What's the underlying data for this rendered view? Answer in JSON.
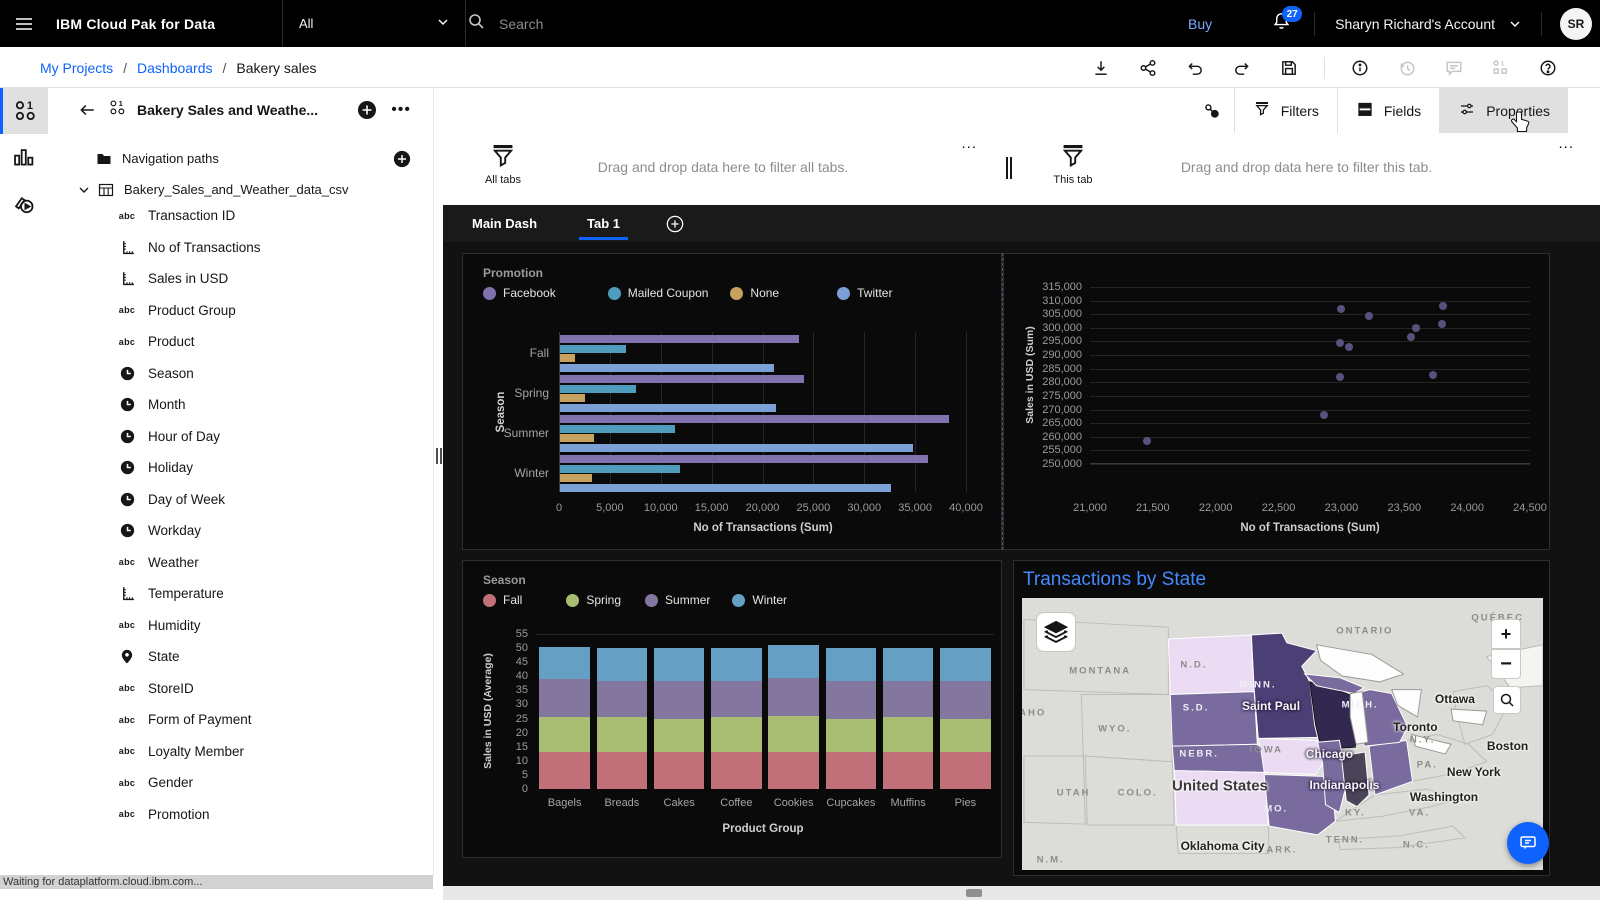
{
  "header": {
    "product": "IBM Cloud Pak for Data",
    "scope_selector": "All",
    "search_placeholder": "Search",
    "buy_label": "Buy",
    "notification_count": "27",
    "account_label": "Sharyn Richard's Account",
    "avatar_initials": "SR"
  },
  "breadcrumb": {
    "separator": "/",
    "items": [
      {
        "label": "My Projects",
        "link": true
      },
      {
        "label": "Dashboards",
        "link": true
      },
      {
        "label": "Bakery sales",
        "link": false
      }
    ]
  },
  "action_toolbar": {
    "icons": [
      {
        "name": "download-icon",
        "disabled": false
      },
      {
        "name": "share-icon",
        "disabled": false
      },
      {
        "name": "undo-icon",
        "disabled": false
      },
      {
        "name": "redo-icon",
        "disabled": false
      },
      {
        "name": "save-icon",
        "disabled": false
      },
      {
        "name": "info-icon",
        "disabled": false,
        "divider_before": true
      },
      {
        "name": "history-icon",
        "disabled": true
      },
      {
        "name": "comment-icon",
        "disabled": true
      },
      {
        "name": "data-icon",
        "disabled": true
      },
      {
        "name": "help-icon",
        "disabled": false
      }
    ]
  },
  "rail": {
    "items": [
      {
        "name": "data-sources",
        "icon": "rail-data-icon",
        "active": true
      },
      {
        "name": "visualizations",
        "icon": "rail-chart-icon",
        "active": false
      },
      {
        "name": "media",
        "icon": "rail-media-icon",
        "active": false
      }
    ]
  },
  "data_panel": {
    "title": "Bakery Sales and Weathe...",
    "navigation_folder": "Navigation paths",
    "table_name": "Bakery_Sales_and_Weather_data_csv",
    "fields": [
      {
        "label": "Transaction ID",
        "type": "text"
      },
      {
        "label": "No of Transactions",
        "type": "measure"
      },
      {
        "label": "Sales in USD",
        "type": "measure"
      },
      {
        "label": "Product Group",
        "type": "text"
      },
      {
        "label": "Product",
        "type": "text"
      },
      {
        "label": "Season",
        "type": "time"
      },
      {
        "label": "Month",
        "type": "time"
      },
      {
        "label": "Hour of Day",
        "type": "time"
      },
      {
        "label": "Holiday",
        "type": "time"
      },
      {
        "label": "Day of Week",
        "type": "time"
      },
      {
        "label": "Workday",
        "type": "time"
      },
      {
        "label": "Weather",
        "type": "text"
      },
      {
        "label": "Temperature",
        "type": "measure"
      },
      {
        "label": "Humidity",
        "type": "text"
      },
      {
        "label": "State",
        "type": "location"
      },
      {
        "label": "StoreID",
        "type": "text"
      },
      {
        "label": "Form of Payment",
        "type": "text"
      },
      {
        "label": "Loyalty Member",
        "type": "text"
      },
      {
        "label": "Gender",
        "type": "text"
      },
      {
        "label": "Promotion",
        "type": "text"
      }
    ]
  },
  "canvas_toolbar": {
    "buttons": [
      {
        "label": "Filters",
        "icon": "funnel-icon",
        "active": false
      },
      {
        "label": "Fields",
        "icon": "fields-icon",
        "active": false
      },
      {
        "label": "Properties",
        "icon": "sliders-icon",
        "active": true
      }
    ]
  },
  "filter_zones": {
    "all_tabs": {
      "label": "All tabs",
      "hint": "Drag and drop data here to filter all tabs.",
      "menu": "..."
    },
    "this_tab": {
      "label": "This tab",
      "hint": "Drag and drop data here to filter this tab.",
      "menu": "..."
    }
  },
  "tabs": {
    "items": [
      {
        "label": "Main Dash",
        "active": false
      },
      {
        "label": "Tab 1",
        "active": true
      }
    ]
  },
  "status_bar": "Waiting for dataplatform.cloud.ibm.com...",
  "chart_data": [
    {
      "type": "bar",
      "orientation": "horizontal",
      "legend_title": "Promotion",
      "categories": [
        "Fall",
        "Spring",
        "Summer",
        "Winter"
      ],
      "series": [
        {
          "name": "Facebook",
          "color": "#8172ae",
          "values": [
            23500,
            24000,
            38200,
            36200
          ]
        },
        {
          "name": "Mailed Coupon",
          "color": "#4f9dbd",
          "values": [
            6500,
            7500,
            11300,
            11800
          ]
        },
        {
          "name": "None",
          "color": "#c7a15f",
          "values": [
            1500,
            2500,
            3300,
            3100
          ]
        },
        {
          "name": "Twitter",
          "color": "#7ba0d6",
          "values": [
            21000,
            21200,
            34700,
            32500
          ]
        }
      ],
      "xlabel": "No of Transactions (Sum)",
      "ylabel": "Season",
      "xlim": [
        0,
        40000
      ],
      "xticks": [
        0,
        5000,
        10000,
        15000,
        20000,
        25000,
        30000,
        35000,
        40000
      ],
      "grid": "vertical"
    },
    {
      "type": "scatter",
      "color": "#63588a",
      "points": [
        [
          21450,
          258500
        ],
        [
          22860,
          268000
        ],
        [
          22990,
          282000
        ],
        [
          22990,
          294500
        ],
        [
          23000,
          307000
        ],
        [
          23060,
          292800
        ],
        [
          23220,
          304500
        ],
        [
          23550,
          296800
        ],
        [
          23590,
          299800
        ],
        [
          23730,
          282800
        ],
        [
          23800,
          301300
        ],
        [
          23810,
          308200
        ]
      ],
      "xlabel": "No of Transactions (Sum)",
      "ylabel": "Sales in USD (Sum)",
      "xlim": [
        21000,
        24500
      ],
      "ylim": [
        250000,
        315000
      ],
      "xticks": [
        21000,
        21500,
        22000,
        22500,
        23000,
        23500,
        24000,
        24500
      ],
      "yticks": [
        250000,
        255000,
        260000,
        265000,
        270000,
        275000,
        280000,
        285000,
        290000,
        295000,
        300000,
        305000,
        310000,
        315000
      ],
      "grid": "horizontal"
    },
    {
      "type": "bar",
      "orientation": "vertical-stacked",
      "legend_title": "Season",
      "categories": [
        "Bagels",
        "Breads",
        "Cakes",
        "Coffee",
        "Cookies",
        "Cupcakes",
        "Muffins",
        "Pies"
      ],
      "series": [
        {
          "name": "Fall",
          "color": "#c17079",
          "values": [
            13,
            13,
            13,
            13,
            13,
            13,
            13,
            13
          ]
        },
        {
          "name": "Spring",
          "color": "#a9bd72",
          "values": [
            12.5,
            12.5,
            12,
            12.5,
            13,
            12,
            12.5,
            12
          ]
        },
        {
          "name": "Summer",
          "color": "#83779f",
          "values": [
            13.5,
            13,
            13.5,
            13,
            13.5,
            13.5,
            13,
            13.5
          ]
        },
        {
          "name": "Winter",
          "color": "#659fc3",
          "values": [
            11.5,
            11.5,
            11.5,
            11.5,
            11.5,
            11.5,
            11.5,
            11.5
          ]
        }
      ],
      "xlabel": "Product Group",
      "ylabel": "Sales in USD (Average)",
      "ylim": [
        0,
        55
      ],
      "yticks": [
        0,
        5,
        10,
        15,
        20,
        25,
        30,
        35,
        40,
        45,
        50,
        55
      ],
      "grid": "none"
    },
    {
      "type": "choropleth-map",
      "title": "Transactions by State",
      "level_colors": {
        "light": "#ecdcf3",
        "medium": "#7a6b9e",
        "dark": "#4c3f75",
        "darkest": "#33284f",
        "slate": "#4b4358"
      },
      "states": [
        {
          "state": "North Dakota",
          "level": "light"
        },
        {
          "state": "South Dakota",
          "level": "medium"
        },
        {
          "state": "Nebraska",
          "level": "medium"
        },
        {
          "state": "Kansas",
          "level": "light"
        },
        {
          "state": "Minnesota",
          "level": "dark"
        },
        {
          "state": "Wisconsin",
          "level": "darkest"
        },
        {
          "state": "Iowa",
          "level": "light"
        },
        {
          "state": "Missouri",
          "level": "medium"
        },
        {
          "state": "Illinois",
          "level": "medium"
        },
        {
          "state": "Indiana",
          "level": "slate"
        },
        {
          "state": "Michigan",
          "level": "medium"
        },
        {
          "state": "Ohio",
          "level": "medium"
        }
      ],
      "labels": [
        {
          "text": "QUÉBEC",
          "kind": "region",
          "x": 91.3,
          "y": 7.2
        },
        {
          "text": "ONTARIO",
          "kind": "region",
          "x": 65.8,
          "y": 12.2
        },
        {
          "text": "MONTANA",
          "kind": "region",
          "x": 15,
          "y": 26.9
        },
        {
          "text": "N.D.",
          "kind": "region",
          "x": 33,
          "y": 24.7
        },
        {
          "text": "MINN.",
          "kind": "region-inverse",
          "x": 45.3,
          "y": 31.9
        },
        {
          "text": "S.D.",
          "kind": "region-inverse",
          "x": 33.4,
          "y": 40.5
        },
        {
          "text": "MICH.",
          "kind": "region-inverse",
          "x": 64.9,
          "y": 39.4
        },
        {
          "text": "WYO.",
          "kind": "region",
          "x": 17.8,
          "y": 48
        },
        {
          "text": "DAHO",
          "kind": "region",
          "x": 1.2,
          "y": 42.3
        },
        {
          "text": "IOWA",
          "kind": "region",
          "x": 46.9,
          "y": 55.9
        },
        {
          "text": "NEBR.",
          "kind": "region-inverse",
          "x": 34,
          "y": 57.3
        },
        {
          "text": "N.Y.",
          "kind": "region",
          "x": 76.9,
          "y": 52.3
        },
        {
          "text": "PA.",
          "kind": "region",
          "x": 77.8,
          "y": 61.3
        },
        {
          "text": "UTAH",
          "kind": "region",
          "x": 9.9,
          "y": 71.7
        },
        {
          "text": "COLO.",
          "kind": "region",
          "x": 22.2,
          "y": 71.7
        },
        {
          "text": "MO.",
          "kind": "region-inverse",
          "x": 48.8,
          "y": 77.4
        },
        {
          "text": "KY.",
          "kind": "region",
          "x": 64,
          "y": 79.2
        },
        {
          "text": "VA.",
          "kind": "region",
          "x": 76.3,
          "y": 78.9
        },
        {
          "text": "TENN.",
          "kind": "region",
          "x": 62,
          "y": 88.9
        },
        {
          "text": "N.C.",
          "kind": "region",
          "x": 75.7,
          "y": 90.7
        },
        {
          "text": "ARK.",
          "kind": "region",
          "x": 49.9,
          "y": 92.5
        },
        {
          "text": "N.M.",
          "kind": "region",
          "x": 5.5,
          "y": 96.4
        },
        {
          "text": "Saint Paul",
          "kind": "city-inverse",
          "x": 47.8,
          "y": 39.8
        },
        {
          "text": "Chicago",
          "kind": "city-inverse",
          "x": 59,
          "y": 57.3
        },
        {
          "text": "Indianapolis",
          "kind": "city-inverse",
          "x": 61.9,
          "y": 68.8
        },
        {
          "text": "Ottawa",
          "kind": "city",
          "x": 83.1,
          "y": 37.3
        },
        {
          "text": "Toronto",
          "kind": "city",
          "x": 75.5,
          "y": 47.3
        },
        {
          "text": "Boston",
          "kind": "city",
          "x": 93.2,
          "y": 54.5
        },
        {
          "text": "New York",
          "kind": "city",
          "x": 86.7,
          "y": 63.8
        },
        {
          "text": "Washington",
          "kind": "city",
          "x": 81,
          "y": 73.1
        },
        {
          "text": "Oklahoma City",
          "kind": "city",
          "x": 38.5,
          "y": 91
        },
        {
          "text": "United States",
          "kind": "country",
          "x": 38,
          "y": 69.2
        }
      ],
      "controls": [
        "layers-icon",
        "zoom-in-icon",
        "zoom-out-icon",
        "search-icon"
      ]
    }
  ]
}
